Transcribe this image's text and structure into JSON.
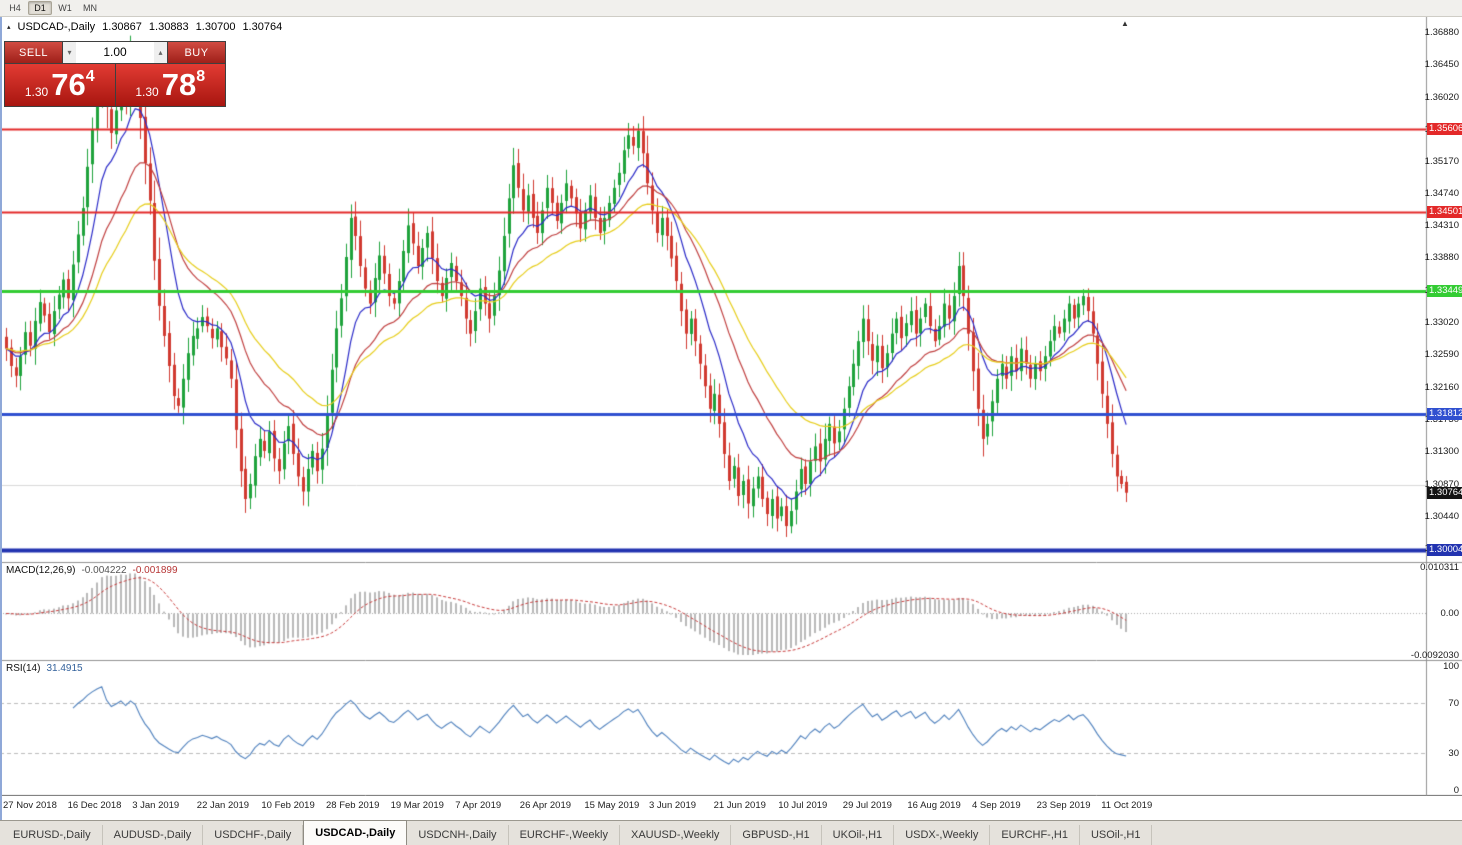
{
  "toolbar": {
    "timeframes": [
      {
        "label": "H4",
        "active": false
      },
      {
        "label": "D1",
        "active": true
      },
      {
        "label": "W1",
        "active": false
      },
      {
        "label": "MN",
        "active": false
      }
    ]
  },
  "icons": {
    "chart_icon": "▴",
    "shift_marker": "▲",
    "volume_down": "▾",
    "volume_up": "▴"
  },
  "chart": {
    "title": "USDCAD-,Daily",
    "ohlc": {
      "open": "1.30867",
      "high": "1.30883",
      "low": "1.30700",
      "close": "1.30764"
    }
  },
  "trade_panel": {
    "sell_label": "SELL",
    "buy_label": "BUY",
    "volume": "1.00",
    "sell_price": {
      "prefix": "1.30",
      "big": "76",
      "sup": "4"
    },
    "buy_price": {
      "prefix": "1.30",
      "big": "78",
      "sup": "8"
    }
  },
  "price_axis": {
    "ticks": [
      "1.36880",
      "1.36450",
      "1.36020",
      "1.35590",
      "1.35170",
      "1.34740",
      "1.34310",
      "1.33880",
      "1.33450",
      "1.33020",
      "1.32590",
      "1.32160",
      "1.31730",
      "1.31300",
      "1.30870",
      "1.30440",
      "1.30010"
    ],
    "levels": [
      {
        "value": "1.35606",
        "price": 1.35606,
        "color": "#e32929",
        "line_width": 2
      },
      {
        "value": "1.34501",
        "price": 1.34501,
        "color": "#e32929",
        "line_width": 2
      },
      {
        "value": "1.33449",
        "price": 1.33449,
        "color": "#33cc33",
        "line_width": 3
      },
      {
        "value": "1.31812",
        "price": 1.31812,
        "color": "#3050d0",
        "line_width": 3
      },
      {
        "value": "1.30004",
        "price": 1.30004,
        "color": "#2233b0",
        "line_width": 4
      }
    ],
    "current": {
      "value": "1.30764",
      "price": 1.30764,
      "color": "#141414"
    }
  },
  "macd": {
    "label": "MACD(12,26,9)",
    "value_main": "-0.004222",
    "value_signal": "-0.001899",
    "axis": [
      "0.010311",
      "0.00",
      "-0.0092030"
    ]
  },
  "rsi": {
    "label": "RSI(14)",
    "value": "31.4915",
    "axis": [
      "100",
      "70",
      "30",
      "0"
    ]
  },
  "tabs": [
    {
      "label": "EURUSD-,Daily",
      "active": false
    },
    {
      "label": "AUDUSD-,Daily",
      "active": false
    },
    {
      "label": "USDCHF-,Daily",
      "active": false
    },
    {
      "label": "USDCAD-,Daily",
      "active": true
    },
    {
      "label": "USDCNH-,Daily",
      "active": false
    },
    {
      "label": "EURCHF-,Weekly",
      "active": false
    },
    {
      "label": "XAUUSD-,Weekly",
      "active": false
    },
    {
      "label": "GBPUSD-,H1",
      "active": false
    },
    {
      "label": "UKOil-,H1",
      "active": false
    },
    {
      "label": "USDX-,Weekly",
      "active": false
    },
    {
      "label": "EURCHF-,H1",
      "active": false
    },
    {
      "label": "USOil-,H1",
      "active": false
    }
  ],
  "colors": {
    "candle_up": "#1fa33c",
    "candle_down": "#d13a30",
    "macd_hist": "#b9b9b9",
    "macd_signal": "#c83c3c",
    "rsi_line": "#4f81bd",
    "grid_line": "#d9d9d9",
    "separator": "#909090"
  },
  "chart_data": {
    "type": "candlestick",
    "symbol": "USDCAD",
    "timeframe": "Daily",
    "price_max": 1.37093,
    "price_min": 1.29842,
    "bar_count": 235,
    "x_tick_labels": [
      "27 Nov 2018",
      "16 Dec 2018",
      "3 Jan 2019",
      "22 Jan 2019",
      "10 Feb 2019",
      "28 Feb 2019",
      "19 Mar 2019",
      "7 Apr 2019",
      "26 Apr 2019",
      "15 May 2019",
      "3 Jun 2019",
      "21 Jun 2019",
      "10 Jul 2019",
      "29 Jul 2019",
      "16 Aug 2019",
      "4 Sep 2019",
      "23 Sep 2019",
      "11 Oct 2019"
    ],
    "closes": [
      1.3268,
      1.3245,
      1.3232,
      1.3258,
      1.329,
      1.3272,
      1.3305,
      1.333,
      1.3312,
      1.329,
      1.3318,
      1.334,
      1.336,
      1.3335,
      1.338,
      1.342,
      1.3455,
      1.351,
      1.356,
      1.361,
      1.3652,
      1.359,
      1.3555,
      1.3585,
      1.3625,
      1.36,
      1.366,
      1.364,
      1.3575,
      1.3515,
      1.3465,
      1.3385,
      1.3325,
      1.3285,
      1.3245,
      1.3205,
      1.3192,
      1.3228,
      1.3262,
      1.3285,
      1.3295,
      1.331,
      1.3298,
      1.3282,
      1.3295,
      1.327,
      1.3255,
      1.3228,
      1.316,
      1.3105,
      1.3068,
      1.3088,
      1.3125,
      1.3148,
      1.3132,
      1.3158,
      1.3122,
      1.3105,
      1.3142,
      1.3165,
      1.3128,
      1.3098,
      1.3078,
      1.3108,
      1.3132,
      1.3105,
      1.3135,
      1.3182,
      1.324,
      1.3295,
      1.3335,
      1.339,
      1.3442,
      1.3418,
      1.3378,
      1.3348,
      1.3328,
      1.3362,
      1.3392,
      1.3368,
      1.3338,
      1.3328,
      1.3358,
      1.3398,
      1.3432,
      1.3408,
      1.3378,
      1.3402,
      1.3422,
      1.3388,
      1.3358,
      1.3338,
      1.3362,
      1.3382,
      1.3358,
      1.3338,
      1.3308,
      1.3288,
      1.3318,
      1.3348,
      1.3328,
      1.3308,
      1.3338,
      1.3372,
      1.3418,
      1.3468,
      1.3512,
      1.3482,
      1.3452,
      1.3472,
      1.3442,
      1.3422,
      1.3452,
      1.3482,
      1.3462,
      1.3438,
      1.3462,
      1.3488,
      1.3468,
      1.3448,
      1.3428,
      1.3452,
      1.3472,
      1.3442,
      1.3422,
      1.3442,
      1.3462,
      1.3482,
      1.3502,
      1.3532,
      1.3552,
      1.3538,
      1.3558,
      1.3528,
      1.3488,
      1.3452,
      1.3422,
      1.3442,
      1.3418,
      1.3388,
      1.3358,
      1.3318,
      1.3288,
      1.3308,
      1.3278,
      1.3248,
      1.3218,
      1.3188,
      1.3208,
      1.3168,
      1.3128,
      1.3092,
      1.3112,
      1.3072,
      1.3092,
      1.3062,
      1.3082,
      1.3098,
      1.3068,
      1.3048,
      1.3068,
      1.3042,
      1.3058,
      1.3032,
      1.3052,
      1.3078,
      1.3108,
      1.3088,
      1.3118,
      1.3138,
      1.3118,
      1.3148,
      1.3168,
      1.3142,
      1.3158,
      1.3188,
      1.3218,
      1.3248,
      1.3278,
      1.3308,
      1.3278,
      1.3252,
      1.3272,
      1.3242,
      1.3262,
      1.3288,
      1.3308,
      1.3282,
      1.3302,
      1.3318,
      1.3288,
      1.3308,
      1.3328,
      1.3298,
      1.3278,
      1.3298,
      1.3328,
      1.3308,
      1.3338,
      1.3378,
      1.3338,
      1.3288,
      1.3238,
      1.3188,
      1.3148,
      1.3168,
      1.3198,
      1.3228,
      1.3248,
      1.3228,
      1.3258,
      1.3238,
      1.3268,
      1.3248,
      1.3228,
      1.3248,
      1.3238,
      1.3258,
      1.3278,
      1.3298,
      1.3288,
      1.3308,
      1.3328,
      1.3308,
      1.3328,
      1.3338,
      1.3318,
      1.3288,
      1.3248,
      1.3208,
      1.3168,
      1.3128,
      1.3098,
      1.3088,
      1.30764
    ],
    "last_ohlc": {
      "open": 1.30867,
      "high": 1.30883,
      "low": 1.307,
      "close": 1.30764
    },
    "moving_averages": [
      {
        "name": "fast",
        "period": 10,
        "color": "#2a2ac8"
      },
      {
        "name": "medium",
        "period": 21,
        "color": "#c04040"
      },
      {
        "name": "slow",
        "period": 34,
        "color": "#e6cd1a"
      }
    ],
    "horizontal_levels": [
      1.35606,
      1.34501,
      1.33449,
      1.31812,
      1.30004
    ],
    "grid_line_price": 1.3087,
    "macd": {
      "params": [
        12,
        26,
        9
      ],
      "axis_max": 0.010311,
      "axis_min": -0.009203,
      "current_main": -0.004222,
      "current_signal": -0.001899
    },
    "rsi": {
      "period": 14,
      "current": 31.4915,
      "levels": [
        70,
        30
      ]
    }
  }
}
